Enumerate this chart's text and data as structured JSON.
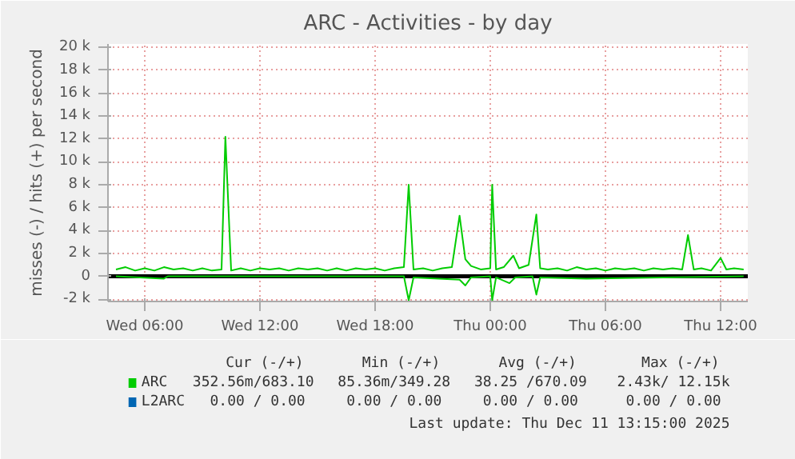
{
  "chart_data": {
    "type": "line",
    "title": "ARC - Activities - by day",
    "ylabel": "misses (-) / hits (+) per second",
    "xlim": [
      "2025-12-10T04:05",
      "2025-12-11T13:25"
    ],
    "ylim": [
      -2200,
      20300
    ],
    "xticks": [
      {
        "value": "2025-12-10T06:00",
        "label": "Wed 06:00"
      },
      {
        "value": "2025-12-10T12:00",
        "label": "Wed 12:00"
      },
      {
        "value": "2025-12-10T18:00",
        "label": "Wed 18:00"
      },
      {
        "value": "2025-12-11T00:00",
        "label": "Thu 00:00"
      },
      {
        "value": "2025-12-11T06:00",
        "label": "Thu 06:00"
      },
      {
        "value": "2025-12-11T12:00",
        "label": "Thu 12:00"
      }
    ],
    "yticks": [
      {
        "value": -2000,
        "label": "-2 k"
      },
      0,
      {
        "value": 2000,
        "label": "2 k"
      },
      {
        "value": 4000,
        "label": "4 k"
      },
      {
        "value": 6000,
        "label": "6 k"
      },
      {
        "value": 8000,
        "label": "8 k"
      },
      {
        "value": 10000,
        "label": "10 k"
      },
      {
        "value": 12000,
        "label": "12 k"
      },
      {
        "value": 14000,
        "label": "14 k"
      },
      {
        "value": 16000,
        "label": "16 k"
      },
      {
        "value": 18000,
        "label": "18 k"
      },
      {
        "value": 20000,
        "label": "20 k"
      }
    ],
    "grid": true,
    "legend": "bottom",
    "series": [
      {
        "name": "ARC",
        "color": "#00cc00",
        "x": [
          "2025-12-10T04:30",
          "2025-12-10T05:00",
          "2025-12-10T05:30",
          "2025-12-10T06:00",
          "2025-12-10T06:30",
          "2025-12-10T07:00",
          "2025-12-10T07:30",
          "2025-12-10T08:00",
          "2025-12-10T08:30",
          "2025-12-10T09:00",
          "2025-12-10T09:30",
          "2025-12-10T10:00",
          "2025-12-10T10:12",
          "2025-12-10T10:30",
          "2025-12-10T11:00",
          "2025-12-10T11:30",
          "2025-12-10T12:00",
          "2025-12-10T12:30",
          "2025-12-10T13:00",
          "2025-12-10T13:30",
          "2025-12-10T14:00",
          "2025-12-10T14:30",
          "2025-12-10T15:00",
          "2025-12-10T15:30",
          "2025-12-10T16:00",
          "2025-12-10T16:30",
          "2025-12-10T17:00",
          "2025-12-10T17:30",
          "2025-12-10T18:00",
          "2025-12-10T18:30",
          "2025-12-10T19:00",
          "2025-12-10T19:30",
          "2025-12-10T19:45",
          "2025-12-10T20:00",
          "2025-12-10T20:30",
          "2025-12-10T21:00",
          "2025-12-10T21:30",
          "2025-12-10T22:00",
          "2025-12-10T22:24",
          "2025-12-10T22:42",
          "2025-12-10T23:00",
          "2025-12-10T23:30",
          "2025-12-11T00:00",
          "2025-12-11T00:06",
          "2025-12-11T00:18",
          "2025-12-11T00:42",
          "2025-12-11T01:12",
          "2025-12-11T01:30",
          "2025-12-11T02:00",
          "2025-12-11T02:24",
          "2025-12-11T02:36",
          "2025-12-11T03:00",
          "2025-12-11T03:30",
          "2025-12-11T04:00",
          "2025-12-11T04:30",
          "2025-12-11T05:00",
          "2025-12-11T05:30",
          "2025-12-11T06:00",
          "2025-12-11T06:30",
          "2025-12-11T07:00",
          "2025-12-11T07:30",
          "2025-12-11T08:00",
          "2025-12-11T08:30",
          "2025-12-11T09:00",
          "2025-12-11T09:30",
          "2025-12-11T10:00",
          "2025-12-11T10:18",
          "2025-12-11T10:36",
          "2025-12-11T11:00",
          "2025-12-11T11:30",
          "2025-12-11T12:00",
          "2025-12-11T12:18",
          "2025-12-11T12:42",
          "2025-12-11T13:12"
        ],
        "values": [
          600,
          800,
          500,
          700,
          500,
          800,
          600,
          700,
          500,
          700,
          500,
          600,
          12200,
          500,
          700,
          500,
          700,
          600,
          700,
          500,
          700,
          600,
          700,
          500,
          700,
          500,
          700,
          600,
          700,
          500,
          700,
          800,
          8000,
          600,
          700,
          500,
          700,
          800,
          5300,
          1500,
          900,
          600,
          700,
          8000,
          600,
          800,
          1800,
          700,
          1000,
          5400,
          700,
          600,
          700,
          500,
          800,
          600,
          700,
          500,
          700,
          600,
          700,
          500,
          700,
          600,
          700,
          600,
          3600,
          600,
          700,
          500,
          1600,
          600,
          700,
          600
        ]
      },
      {
        "color": "#00cc00",
        "x": [
          "2025-12-10T04:30",
          "2025-12-10T07:00",
          "2025-12-10T07:12",
          "2025-12-10T19:30",
          "2025-12-10T19:45",
          "2025-12-10T20:00",
          "2025-12-10T22:24",
          "2025-12-10T22:42",
          "2025-12-10T23:00",
          "2025-12-11T00:00",
          "2025-12-11T00:06",
          "2025-12-11T00:18",
          "2025-12-11T01:00",
          "2025-12-11T01:18",
          "2025-12-11T02:12",
          "2025-12-11T02:24",
          "2025-12-11T02:36",
          "2025-12-11T05:00",
          "2025-12-11T13:12"
        ],
        "values": [
          0,
          -200,
          0,
          0,
          -2100,
          -100,
          -300,
          -800,
          -100,
          0,
          -2100,
          -100,
          -600,
          -100,
          0,
          -1600,
          -100,
          -200,
          0
        ]
      },
      {
        "name": "L2ARC",
        "color": "#0066b3"
      }
    ],
    "ref_lines": [
      {
        "axis": "y",
        "value": 0,
        "color": "#000000"
      }
    ],
    "annotations": [
      "Cur (-/+)",
      "Min (-/+)",
      "Avg (-/+)",
      "Max (-/+)",
      "352.56m/683.10",
      "85.36m/349.28",
      "38.25 /670.09",
      "2.43k/ 12.15k",
      "0.00 /  0.00",
      "0.00 /  0.00",
      "0.00 /  0.00",
      "0.00 /  0.00",
      "Last update: Thu Dec 11 13:15:00 2025"
    ]
  }
}
